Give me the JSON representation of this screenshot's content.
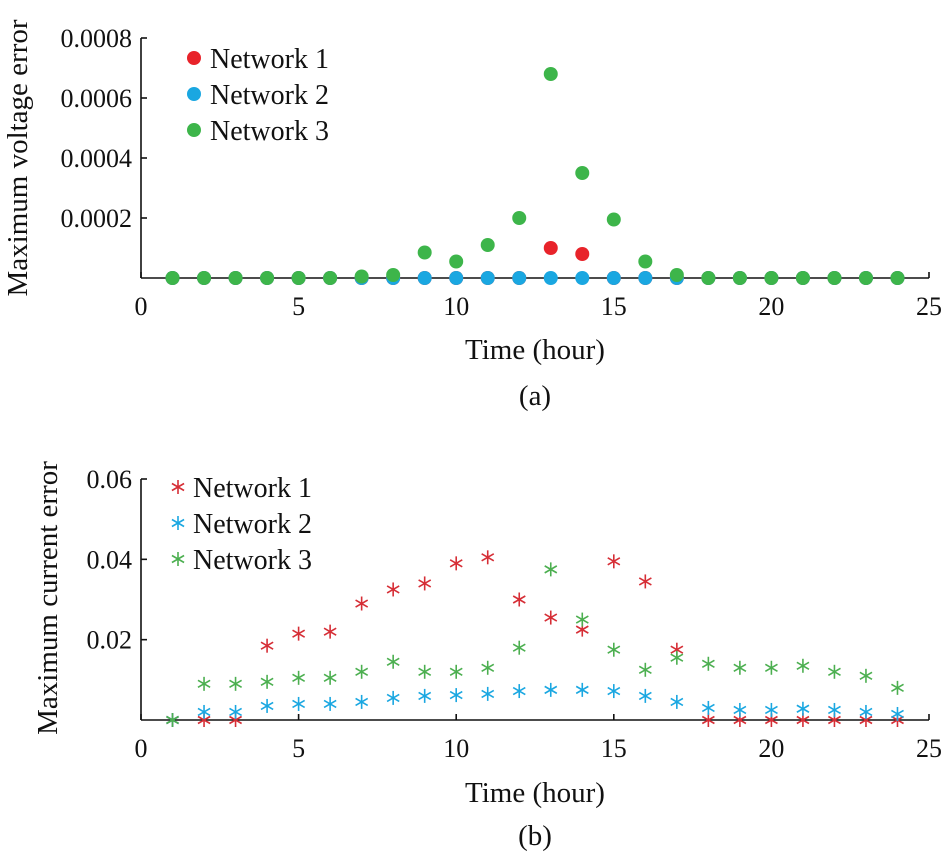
{
  "chart_data": [
    {
      "type": "scatter",
      "marker": "circle",
      "caption": "(a)",
      "xlabel": "Time (hour)",
      "ylabel": "Maximum voltage error",
      "xlim": [
        0,
        25
      ],
      "ylim": [
        0,
        0.0008
      ],
      "xticks": [
        0,
        5,
        10,
        15,
        20,
        25
      ],
      "xtick_labels": [
        "0",
        "5",
        "10",
        "15",
        "20",
        "25"
      ],
      "yticks": [
        0.0002,
        0.0004,
        0.0006,
        0.0008
      ],
      "ytick_labels": [
        "0.0002",
        "0.0004",
        "0.0006",
        "0.0008"
      ],
      "legend_position": "top-left",
      "grid": false,
      "x": [
        1,
        2,
        3,
        4,
        5,
        6,
        7,
        8,
        9,
        10,
        11,
        12,
        13,
        14,
        15,
        16,
        17,
        18,
        19,
        20,
        21,
        22,
        23,
        24
      ],
      "series": [
        {
          "name": "Network 1",
          "color": "#e8232a",
          "values": [
            0,
            0,
            0,
            0,
            0,
            0,
            0,
            0,
            0,
            0,
            0,
            0,
            0.0001,
            8e-05,
            0,
            0,
            0,
            0,
            0,
            0,
            0,
            0,
            0,
            0
          ]
        },
        {
          "name": "Network 2",
          "color": "#1aa7e1",
          "values": [
            0,
            0,
            0,
            0,
            0,
            0,
            0,
            0,
            0,
            0,
            0,
            0,
            0,
            0,
            0,
            0,
            0,
            0,
            0,
            0,
            0,
            0,
            0,
            0
          ]
        },
        {
          "name": "Network 3",
          "color": "#3db54a",
          "values": [
            0,
            0,
            0,
            0,
            0,
            0,
            5e-06,
            1e-05,
            8.5e-05,
            5.5e-05,
            0.00011,
            0.0002,
            0.00068,
            0.00035,
            0.000195,
            5.5e-05,
            1e-05,
            0,
            0,
            0,
            0,
            0,
            0,
            0
          ]
        }
      ]
    },
    {
      "type": "scatter",
      "marker": "asterisk",
      "caption": "(b)",
      "xlabel": "Time (hour)",
      "ylabel": "Maximum current error",
      "xlim": [
        0,
        25
      ],
      "ylim": [
        0,
        0.06
      ],
      "xticks": [
        0,
        5,
        10,
        15,
        20,
        25
      ],
      "xtick_labels": [
        "0",
        "5",
        "10",
        "15",
        "20",
        "25"
      ],
      "yticks": [
        0.02,
        0.04,
        0.06
      ],
      "ytick_labels": [
        "0.02",
        "0.04",
        "0.06"
      ],
      "legend_position": "top-left",
      "grid": false,
      "x": [
        1,
        2,
        3,
        4,
        5,
        6,
        7,
        8,
        9,
        10,
        11,
        12,
        13,
        14,
        15,
        16,
        17,
        18,
        19,
        20,
        21,
        22,
        23,
        24
      ],
      "series": [
        {
          "name": "Network 1",
          "color": "#d62e36",
          "values": [
            0,
            0,
            0,
            0.0185,
            0.0215,
            0.022,
            0.029,
            0.0325,
            0.034,
            0.039,
            0.0405,
            0.03,
            0.0255,
            0.0225,
            0.0395,
            0.0345,
            0.0175,
            0,
            0,
            0,
            0,
            0,
            0,
            0
          ]
        },
        {
          "name": "Network 2",
          "color": "#1aa7e1",
          "values": [
            0,
            0.002,
            0.002,
            0.0035,
            0.004,
            0.004,
            0.0045,
            0.0055,
            0.006,
            0.0062,
            0.0065,
            0.0072,
            0.0075,
            0.0075,
            0.0072,
            0.006,
            0.0045,
            0.003,
            0.0025,
            0.0025,
            0.0028,
            0.0025,
            0.002,
            0.0015
          ]
        },
        {
          "name": "Network 3",
          "color": "#4caf50",
          "values": [
            0,
            0.009,
            0.009,
            0.0095,
            0.0105,
            0.0105,
            0.012,
            0.0145,
            0.012,
            0.012,
            0.013,
            0.018,
            0.0375,
            0.025,
            0.0175,
            0.0125,
            0.0155,
            0.014,
            0.013,
            0.013,
            0.0135,
            0.012,
            0.011,
            0.008
          ]
        }
      ]
    }
  ]
}
